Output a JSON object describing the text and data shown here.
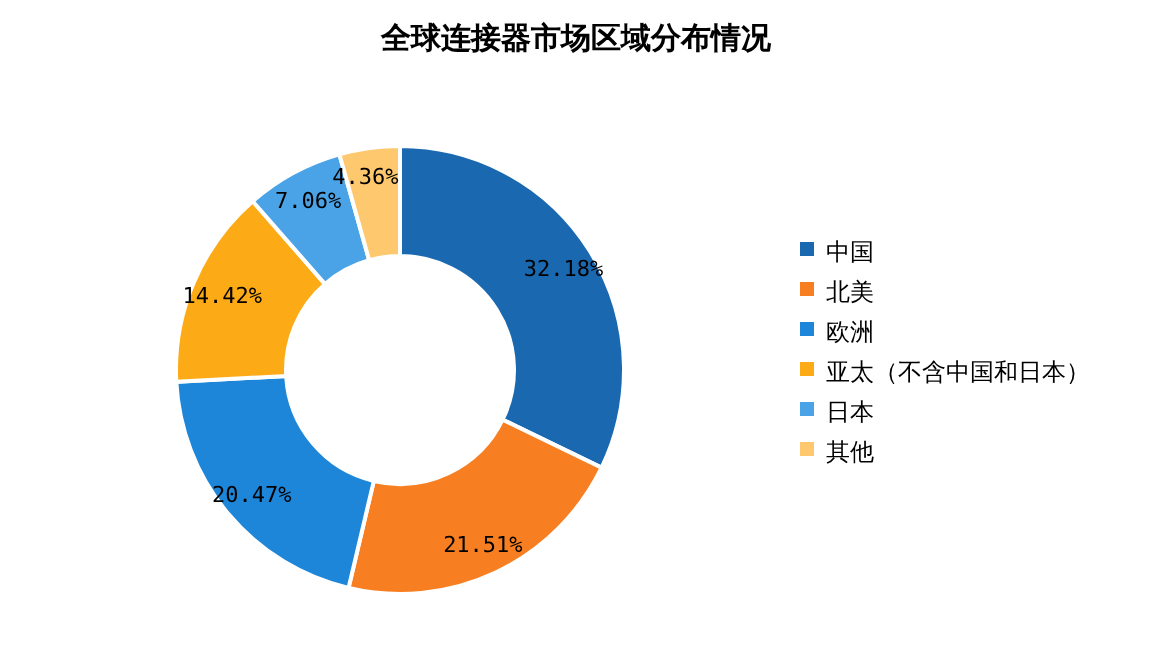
{
  "chart_data": {
    "type": "donut",
    "title": "全球连接器市场区域分布情况",
    "categories": [
      "中国",
      "北美",
      "欧洲",
      "亚太（不含中国和日本）",
      "日本",
      "其他"
    ],
    "values": [
      32.18,
      21.51,
      20.47,
      14.42,
      7.06,
      4.36
    ],
    "colors": [
      "#1a69b0",
      "#f77f22",
      "#1e86d8",
      "#fcaa16",
      "#4aa3e6",
      "#fdc86e"
    ],
    "value_labels": [
      "32.18%",
      "21.51%",
      "20.47%",
      "14.42%",
      "7.06%",
      "4.36%"
    ],
    "legend": "right"
  }
}
